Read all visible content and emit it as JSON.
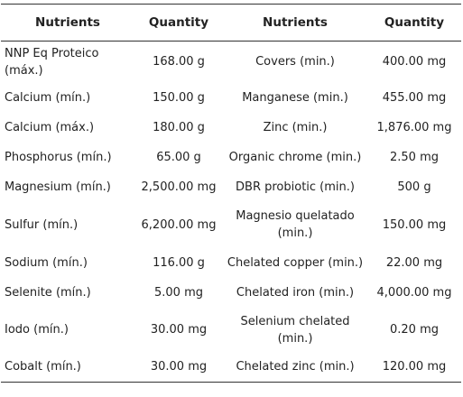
{
  "headers": [
    "Nutrients",
    "Quantity",
    "Nutrients",
    "Quantity"
  ],
  "rows": [
    [
      "NNP Eq Proteico (máx.)",
      "168.00 g",
      "Covers (min.)",
      "400.00 mg"
    ],
    [
      "Calcium (mín.)",
      "150.00 g",
      "Manganese (min.)",
      "455.00 mg"
    ],
    [
      "Calcium (máx.)",
      "180.00 g",
      "Zinc (min.)",
      "1,876.00 mg"
    ],
    [
      "Phosphorus (mín.)",
      "65.00 g",
      "Organic chrome (min.)",
      "2.50 mg"
    ],
    [
      "Magnesium (mín.)",
      "2,500.00 mg",
      "DBR probiotic (min.)",
      "500 g"
    ],
    [
      "Sulfur (mín.)",
      "6,200.00 mg",
      "Magnesio quelatado (min.)",
      "150.00 mg"
    ],
    [
      "Sodium (mín.)",
      "116.00 g",
      "Chelated copper (min.)",
      "22.00 mg"
    ],
    [
      "Selenite (mín.)",
      "5.00 mg",
      "Chelated iron (min.)",
      "4,000.00 mg"
    ],
    [
      "Iodo (mín.)",
      "30.00 mg",
      "Selenium chelated (min.)",
      "0.20 mg"
    ],
    [
      "Cobalt (mín.)",
      "30.00 mg",
      "Chelated zinc (min.)",
      "120.00 mg"
    ]
  ]
}
